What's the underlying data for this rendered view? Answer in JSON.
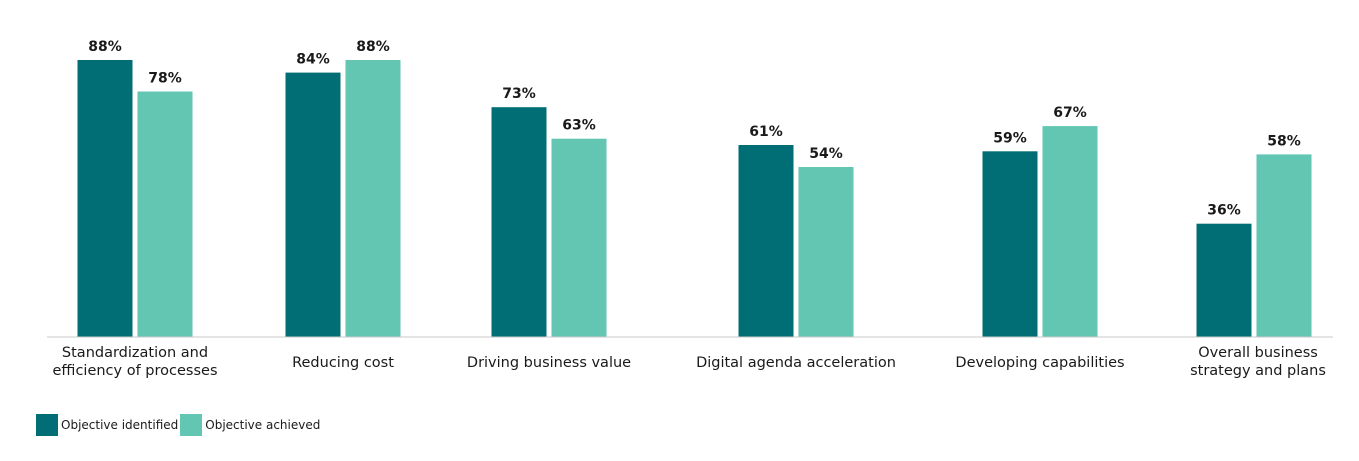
{
  "chart_data": {
    "type": "bar",
    "title": "",
    "xlabel": "",
    "ylabel": "",
    "ylim": [
      0,
      100
    ],
    "grid": false,
    "legend_position": "bottom-left",
    "categories": [
      [
        "Standardization and",
        "efficiency of processes"
      ],
      [
        "Reducing cost"
      ],
      [
        "Driving business value"
      ],
      [
        "Digital agenda acceleration"
      ],
      [
        "Developing capabilities"
      ],
      [
        "Overall business",
        "strategy and plans"
      ]
    ],
    "series": [
      {
        "name": "Objective identified",
        "color": "#006e74",
        "values": [
          88,
          84,
          73,
          61,
          59,
          36
        ],
        "labels": [
          "88%",
          "84%",
          "73%",
          "61%",
          "59%",
          "36%"
        ]
      },
      {
        "name": "Objective achieved",
        "color": "#62c6b3",
        "values": [
          78,
          88,
          63,
          54,
          67,
          58
        ],
        "labels": [
          "78%",
          "88%",
          "63%",
          "54%",
          "67%",
          "58%"
        ]
      }
    ]
  }
}
